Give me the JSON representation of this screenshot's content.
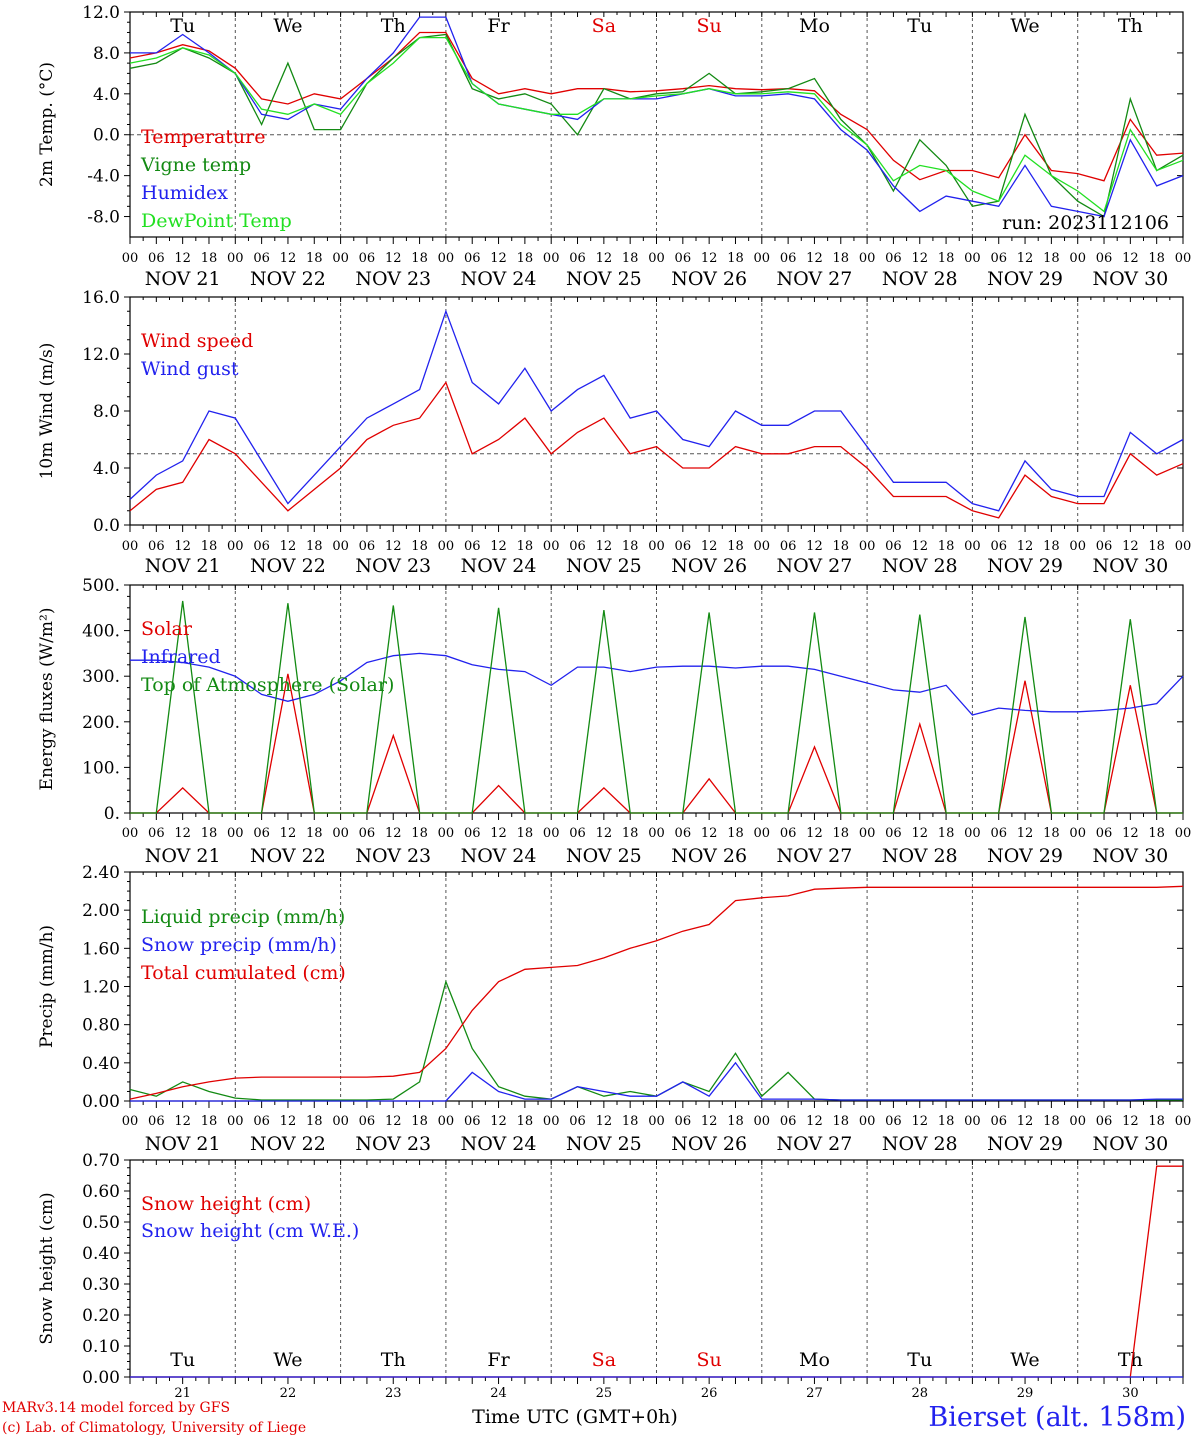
{
  "footer": {
    "credit_line1": "MARv3.14 model forced by GFS",
    "credit_line2": "(c) Lab. of Climatology, University of Liege",
    "station": "Bierset (alt. 158m)",
    "xlabel": "Time UTC (GMT+0h)"
  },
  "time_axis": {
    "hour_ticks": [
      "00",
      "06",
      "12",
      "18"
    ],
    "date_labels": [
      "NOV 21",
      "NOV 22",
      "NOV 23",
      "NOV 24",
      "NOV 25",
      "NOV 26",
      "NOV 27",
      "NOV 28",
      "NOV 29",
      "NOV 30"
    ],
    "weekday_labels": [
      "Tu",
      "We",
      "Th",
      "Fr",
      "Sa",
      "Su",
      "Mo",
      "Tu",
      "We",
      "Th"
    ],
    "weekday_colors": [
      "#000000",
      "#000000",
      "#000000",
      "#000000",
      "#e00000",
      "#e00000",
      "#000000",
      "#000000",
      "#000000",
      "#000000"
    ],
    "day_numbers": [
      "21",
      "22",
      "23",
      "24",
      "25",
      "26",
      "27",
      "28",
      "29",
      "30"
    ],
    "start": "2023-11-21 00 UTC",
    "end": "2023-12-01 00 UTC"
  },
  "chart_data": [
    {
      "type": "line",
      "ylabel": "2m Temp. (°C)",
      "ylim": [
        -10,
        12
      ],
      "yticks": [
        "12.0",
        "8.0",
        "4.0",
        "0.0",
        "-4.0",
        "-8.0"
      ],
      "ref_line": 0,
      "annotation": "run: 2023112106",
      "x": [
        "11-21 00h",
        "11-21 06h",
        "11-21 12h",
        "11-21 18h",
        "11-22 00h",
        "11-22 06h",
        "11-22 12h",
        "11-22 18h",
        "11-23 00h",
        "11-23 06h",
        "11-23 12h",
        "11-23 18h",
        "11-24 00h",
        "11-24 06h",
        "11-24 12h",
        "11-24 18h",
        "11-25 00h",
        "11-25 06h",
        "11-25 12h",
        "11-25 18h",
        "11-26 00h",
        "11-26 06h",
        "11-26 12h",
        "11-26 18h",
        "11-27 00h",
        "11-27 06h",
        "11-27 12h",
        "11-27 18h",
        "11-28 00h",
        "11-28 06h",
        "11-28 12h",
        "11-28 18h",
        "11-29 00h",
        "11-29 06h",
        "11-29 12h",
        "11-29 18h",
        "11-30 00h",
        "11-30 06h",
        "11-30 12h",
        "11-30 18h",
        "12-01 00h"
      ],
      "series": [
        {
          "name": "Temperature",
          "color": "#e00000",
          "values": [
            7.5,
            8.0,
            8.8,
            8.2,
            6.5,
            3.5,
            3.0,
            4.0,
            3.5,
            5.5,
            7.5,
            10.0,
            10.0,
            5.5,
            4.0,
            4.5,
            4.0,
            4.5,
            4.5,
            4.2,
            4.3,
            4.5,
            4.8,
            4.5,
            4.4,
            4.5,
            4.3,
            2.0,
            0.5,
            -2.5,
            -4.4,
            -3.5,
            -3.5,
            -4.2,
            0.0,
            -3.5,
            -3.8,
            -4.5,
            1.5,
            -2.0,
            -1.8
          ]
        },
        {
          "name": "Vigne temp",
          "color": "#138a13",
          "values": [
            6.5,
            7.0,
            8.5,
            7.5,
            6.0,
            1.0,
            7.0,
            0.5,
            0.5,
            5.0,
            7.5,
            9.5,
            9.8,
            4.5,
            3.5,
            4.0,
            3.0,
            0.0,
            4.5,
            3.5,
            4.0,
            4.2,
            6.0,
            4.0,
            4.2,
            4.5,
            5.5,
            1.5,
            -1.0,
            -5.5,
            -0.5,
            -3.0,
            -7.0,
            -6.5,
            2.0,
            -4.0,
            -6.5,
            -8.0,
            3.5,
            -3.5,
            -2.0
          ]
        },
        {
          "name": "Humidex",
          "color": "#2222ee",
          "values": [
            8.0,
            8.0,
            9.8,
            8.0,
            6.0,
            2.0,
            1.5,
            3.0,
            2.5,
            5.5,
            8.0,
            11.5,
            11.5,
            5.0,
            3.0,
            2.5,
            2.0,
            1.5,
            3.5,
            3.5,
            3.5,
            4.0,
            4.5,
            3.8,
            3.8,
            4.0,
            3.5,
            0.5,
            -1.5,
            -5.0,
            -7.5,
            -6.0,
            -6.5,
            -7.0,
            -3.0,
            -7.0,
            -7.5,
            -8.0,
            -0.5,
            -5.0,
            -4.0
          ]
        },
        {
          "name": "DewPoint Temp",
          "color": "#22e022",
          "values": [
            7.0,
            7.5,
            8.5,
            7.8,
            6.0,
            2.5,
            2.0,
            3.0,
            2.0,
            5.0,
            7.0,
            9.5,
            9.5,
            5.0,
            3.0,
            2.5,
            2.0,
            2.0,
            3.5,
            3.5,
            3.8,
            4.0,
            4.5,
            4.0,
            4.0,
            4.2,
            4.0,
            1.0,
            -1.0,
            -4.5,
            -3.0,
            -3.5,
            -5.5,
            -6.5,
            -2.0,
            -4.0,
            -5.5,
            -7.5,
            0.5,
            -3.5,
            -2.5
          ]
        }
      ]
    },
    {
      "type": "line",
      "ylabel": "10m Wind (m/s)",
      "ylim": [
        0,
        16
      ],
      "yticks": [
        "16.0",
        "12.0",
        "8.0",
        "4.0",
        "0.0"
      ],
      "ref_line": 5,
      "x": [
        "11-21 00h",
        "11-21 06h",
        "11-21 12h",
        "11-21 18h",
        "11-22 00h",
        "11-22 06h",
        "11-22 12h",
        "11-22 18h",
        "11-23 00h",
        "11-23 06h",
        "11-23 12h",
        "11-23 18h",
        "11-24 00h",
        "11-24 06h",
        "11-24 12h",
        "11-24 18h",
        "11-25 00h",
        "11-25 06h",
        "11-25 12h",
        "11-25 18h",
        "11-26 00h",
        "11-26 06h",
        "11-26 12h",
        "11-26 18h",
        "11-27 00h",
        "11-27 06h",
        "11-27 12h",
        "11-27 18h",
        "11-28 00h",
        "11-28 06h",
        "11-28 12h",
        "11-28 18h",
        "11-29 00h",
        "11-29 06h",
        "11-29 12h",
        "11-29 18h",
        "11-30 00h",
        "11-30 06h",
        "11-30 12h",
        "11-30 18h",
        "12-01 00h"
      ],
      "series": [
        {
          "name": "Wind speed",
          "color": "#e00000",
          "values": [
            1.0,
            2.5,
            3.0,
            6.0,
            5.0,
            3.0,
            1.0,
            2.5,
            4.0,
            6.0,
            7.0,
            7.5,
            10.0,
            5.0,
            6.0,
            7.5,
            5.0,
            6.5,
            7.5,
            5.0,
            5.5,
            4.0,
            4.0,
            5.5,
            5.0,
            5.0,
            5.5,
            5.5,
            4.0,
            2.0,
            2.0,
            2.0,
            1.0,
            0.5,
            3.5,
            2.0,
            1.5,
            1.5,
            5.0,
            3.5,
            4.3
          ]
        },
        {
          "name": "Wind gust",
          "color": "#2222ee",
          "values": [
            1.8,
            3.5,
            4.5,
            8.0,
            7.5,
            4.5,
            1.5,
            3.5,
            5.5,
            7.5,
            8.5,
            9.5,
            15.0,
            10.0,
            8.5,
            11.0,
            8.0,
            9.5,
            10.5,
            7.5,
            8.0,
            6.0,
            5.5,
            8.0,
            7.0,
            7.0,
            8.0,
            8.0,
            5.5,
            3.0,
            3.0,
            3.0,
            1.5,
            1.0,
            4.5,
            2.5,
            2.0,
            2.0,
            6.5,
            5.0,
            6.0
          ]
        }
      ]
    },
    {
      "type": "line",
      "ylabel": "Energy fluxes (W/m²)",
      "ylim": [
        0,
        500
      ],
      "yticks": [
        "500.",
        "400.",
        "300.",
        "200.",
        "100.",
        "0."
      ],
      "x": [
        "11-21 00h",
        "11-21 06h",
        "11-21 12h",
        "11-21 18h",
        "11-22 00h",
        "11-22 06h",
        "11-22 12h",
        "11-22 18h",
        "11-23 00h",
        "11-23 06h",
        "11-23 12h",
        "11-23 18h",
        "11-24 00h",
        "11-24 06h",
        "11-24 12h",
        "11-24 18h",
        "11-25 00h",
        "11-25 06h",
        "11-25 12h",
        "11-25 18h",
        "11-26 00h",
        "11-26 06h",
        "11-26 12h",
        "11-26 18h",
        "11-27 00h",
        "11-27 06h",
        "11-27 12h",
        "11-27 18h",
        "11-28 00h",
        "11-28 06h",
        "11-28 12h",
        "11-28 18h",
        "11-29 00h",
        "11-29 06h",
        "11-29 12h",
        "11-29 18h",
        "11-30 00h",
        "11-30 06h",
        "11-30 12h",
        "11-30 18h",
        "12-01 00h"
      ],
      "series": [
        {
          "name": "Solar",
          "color": "#e00000",
          "values": [
            0,
            0,
            55,
            0,
            0,
            0,
            305,
            0,
            0,
            0,
            170,
            0,
            0,
            0,
            60,
            0,
            0,
            0,
            55,
            0,
            0,
            0,
            75,
            0,
            0,
            0,
            145,
            0,
            0,
            0,
            195,
            0,
            0,
            0,
            290,
            0,
            0,
            0,
            280,
            0,
            0
          ]
        },
        {
          "name": "Infrared",
          "color": "#2222ee",
          "values": [
            335,
            335,
            330,
            320,
            300,
            260,
            245,
            260,
            290,
            330,
            345,
            350,
            345,
            325,
            315,
            310,
            280,
            320,
            320,
            310,
            320,
            322,
            322,
            318,
            322,
            322,
            315,
            300,
            285,
            270,
            265,
            280,
            215,
            230,
            225,
            222,
            222,
            225,
            230,
            240,
            300
          ]
        },
        {
          "name": "Top of Atmosphere (Solar)",
          "color": "#138a13",
          "values": [
            0,
            0,
            465,
            0,
            0,
            0,
            460,
            0,
            0,
            0,
            455,
            0,
            0,
            0,
            450,
            0,
            0,
            0,
            445,
            0,
            0,
            0,
            440,
            0,
            0,
            0,
            440,
            0,
            0,
            0,
            435,
            0,
            0,
            0,
            430,
            0,
            0,
            0,
            425,
            0,
            0
          ]
        }
      ]
    },
    {
      "type": "line",
      "ylabel": "Precip (mm/h)",
      "ylim": [
        0,
        2.4
      ],
      "yticks": [
        "2.40",
        "2.00",
        "1.60",
        "1.20",
        "0.80",
        "0.40",
        "0.00"
      ],
      "x": [
        "11-21 00h",
        "11-21 06h",
        "11-21 12h",
        "11-21 18h",
        "11-22 00h",
        "11-22 06h",
        "11-22 12h",
        "11-22 18h",
        "11-23 00h",
        "11-23 06h",
        "11-23 12h",
        "11-23 18h",
        "11-24 00h",
        "11-24 06h",
        "11-24 12h",
        "11-24 18h",
        "11-25 00h",
        "11-25 06h",
        "11-25 12h",
        "11-25 18h",
        "11-26 00h",
        "11-26 06h",
        "11-26 12h",
        "11-26 18h",
        "11-27 00h",
        "11-27 06h",
        "11-27 12h",
        "11-27 18h",
        "11-28 00h",
        "11-28 06h",
        "11-28 12h",
        "11-28 18h",
        "11-29 00h",
        "11-29 06h",
        "11-29 12h",
        "11-29 18h",
        "11-30 00h",
        "11-30 06h",
        "11-30 12h",
        "11-30 18h",
        "12-01 00h"
      ],
      "series": [
        {
          "name": "Liquid precip (mm/h)",
          "color": "#138a13",
          "values": [
            0.12,
            0.05,
            0.2,
            0.1,
            0.03,
            0.01,
            0.01,
            0.01,
            0.01,
            0.01,
            0.02,
            0.2,
            1.25,
            0.55,
            0.15,
            0.05,
            0.02,
            0.15,
            0.05,
            0.1,
            0.05,
            0.2,
            0.1,
            0.5,
            0.05,
            0.3,
            0.02,
            0.01,
            0.01,
            0.01,
            0.01,
            0.01,
            0.01,
            0.01,
            0.01,
            0.01,
            0.01,
            0.01,
            0.01,
            0.01,
            0.01
          ]
        },
        {
          "name": "Snow precip (mm/h)",
          "color": "#2222ee",
          "values": [
            0,
            0,
            0,
            0,
            0,
            0,
            0,
            0,
            0,
            0,
            0,
            0,
            0,
            0.3,
            0.1,
            0.02,
            0.02,
            0.15,
            0.1,
            0.05,
            0.05,
            0.2,
            0.05,
            0.4,
            0.02,
            0.02,
            0.02,
            0.01,
            0.01,
            0.01,
            0.01,
            0.01,
            0.01,
            0.01,
            0.01,
            0.01,
            0.01,
            0.01,
            0.01,
            0.02,
            0.02
          ]
        },
        {
          "name": "Total cumulated (cm)",
          "color": "#e00000",
          "values": [
            0.02,
            0.08,
            0.15,
            0.2,
            0.24,
            0.25,
            0.25,
            0.25,
            0.25,
            0.25,
            0.26,
            0.3,
            0.55,
            0.95,
            1.25,
            1.38,
            1.4,
            1.42,
            1.5,
            1.6,
            1.68,
            1.78,
            1.85,
            2.1,
            2.13,
            2.15,
            2.22,
            2.23,
            2.24,
            2.24,
            2.24,
            2.24,
            2.24,
            2.24,
            2.24,
            2.24,
            2.24,
            2.24,
            2.24,
            2.24,
            2.25
          ]
        }
      ]
    },
    {
      "type": "line",
      "ylabel": "Snow height (cm)",
      "ylim": [
        0,
        0.7
      ],
      "yticks": [
        "0.70",
        "0.60",
        "0.50",
        "0.40",
        "0.30",
        "0.20",
        "0.10",
        "0.00"
      ],
      "x": [
        "11-21 00h",
        "11-21 06h",
        "11-21 12h",
        "11-21 18h",
        "11-22 00h",
        "11-22 06h",
        "11-22 12h",
        "11-22 18h",
        "11-23 00h",
        "11-23 06h",
        "11-23 12h",
        "11-23 18h",
        "11-24 00h",
        "11-24 06h",
        "11-24 12h",
        "11-24 18h",
        "11-25 00h",
        "11-25 06h",
        "11-25 12h",
        "11-25 18h",
        "11-26 00h",
        "11-26 06h",
        "11-26 12h",
        "11-26 18h",
        "11-27 00h",
        "11-27 06h",
        "11-27 12h",
        "11-27 18h",
        "11-28 00h",
        "11-28 06h",
        "11-28 12h",
        "11-28 18h",
        "11-29 00h",
        "11-29 06h",
        "11-29 12h",
        "11-29 18h",
        "11-30 00h",
        "11-30 06h",
        "11-30 12h",
        "11-30 18h",
        "12-01 00h"
      ],
      "series": [
        {
          "name": "Snow height (cm)",
          "color": "#e00000",
          "values": [
            0,
            0,
            0,
            0,
            0,
            0,
            0,
            0,
            0,
            0,
            0,
            0,
            0,
            0,
            0,
            0,
            0,
            0,
            0,
            0,
            0,
            0,
            0,
            0,
            0,
            0,
            0,
            0,
            0,
            0,
            0,
            0,
            0,
            0,
            0,
            0,
            0,
            0,
            0,
            0.68,
            0.68
          ]
        },
        {
          "name": "Snow height (cm W.E.)",
          "color": "#2222ee",
          "values": [
            0,
            0,
            0,
            0,
            0,
            0,
            0,
            0,
            0,
            0,
            0,
            0,
            0,
            0,
            0,
            0,
            0,
            0,
            0,
            0,
            0,
            0,
            0,
            0,
            0,
            0,
            0,
            0,
            0,
            0,
            0,
            0,
            0,
            0,
            0,
            0,
            0,
            0,
            0,
            0,
            0
          ]
        }
      ]
    }
  ]
}
